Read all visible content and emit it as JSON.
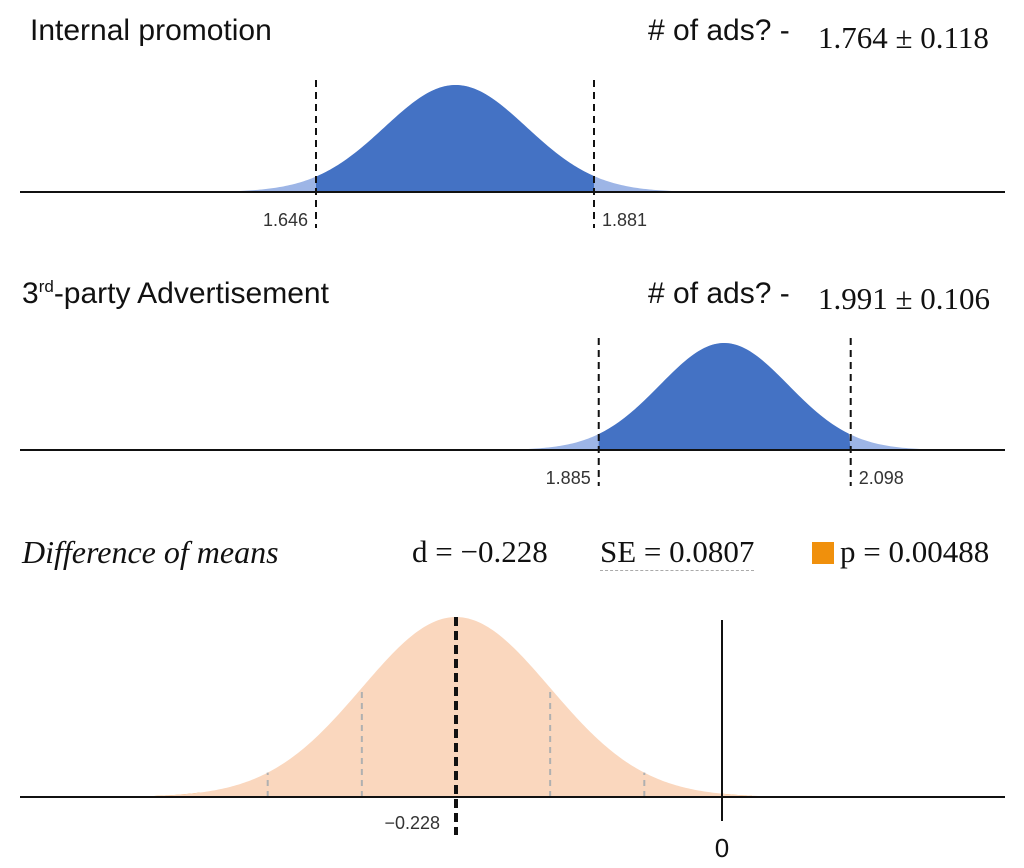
{
  "chart_data": [
    {
      "type": "area",
      "title": "Internal promotion",
      "measure_label": "# of ads? -",
      "mean": 1.764,
      "margin": 0.118,
      "stat_text": "1.764 ± 0.118",
      "ci_lower": 1.646,
      "ci_upper": 1.881,
      "ci_lower_label": "1.646",
      "ci_upper_label": "1.881",
      "color": "#4472c4",
      "tail_color": "#9db5e6"
    },
    {
      "type": "area",
      "title_main": "3",
      "title_sup": "rd",
      "title_rest": "-party Advertisement",
      "measure_label": "# of ads? -",
      "mean": 1.991,
      "margin": 0.106,
      "stat_text": "1.991 ± 0.106",
      "ci_lower": 1.885,
      "ci_upper": 2.098,
      "ci_lower_label": "1.885",
      "ci_upper_label": "2.098",
      "color": "#4472c4",
      "tail_color": "#9db5e6"
    },
    {
      "type": "area",
      "title": "Difference of means",
      "d_text": "d = −0.228",
      "se_text": "SE = 0.0807",
      "p_text": "p = 0.00488",
      "d": -0.228,
      "se": 0.0807,
      "p": 0.00488,
      "mean_label": "−0.228",
      "zero_label": "0",
      "color": "#fad7be",
      "p_color": "#f0900c"
    }
  ]
}
